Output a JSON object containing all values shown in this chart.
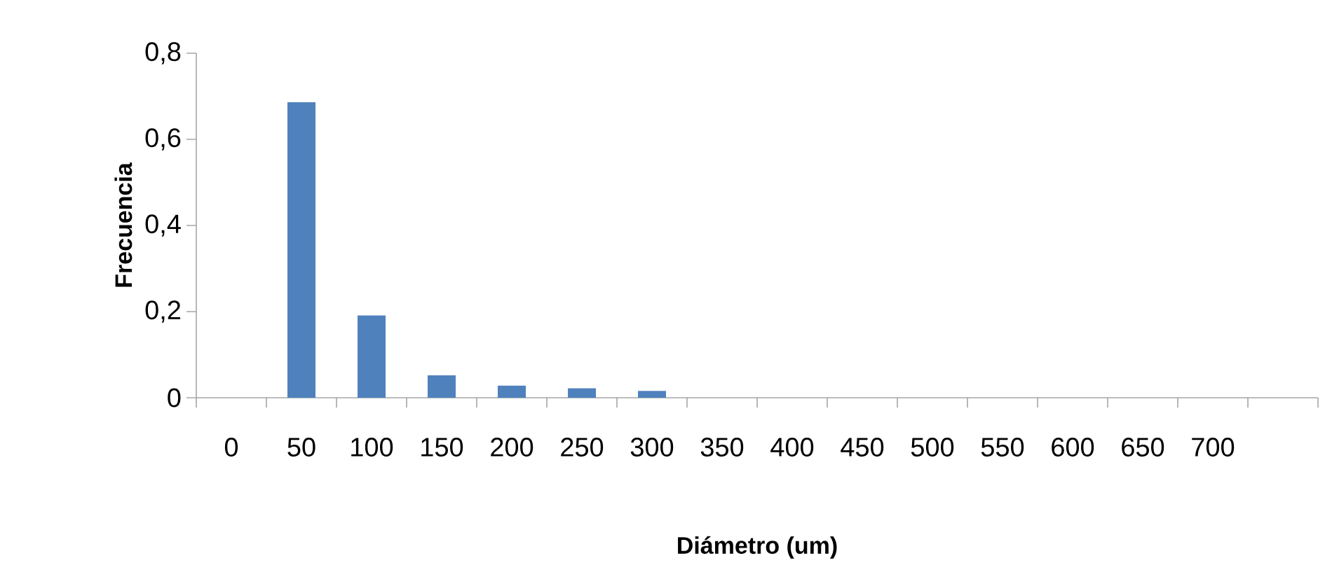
{
  "chart_data": {
    "type": "bar",
    "xlabel": "Diámetro (um)",
    "ylabel": "Frecuencia",
    "categories": [
      "0",
      "50",
      "100",
      "150",
      "200",
      "250",
      "300",
      "350",
      "400",
      "450",
      "500",
      "550",
      "600",
      "650",
      "700",
      null
    ],
    "values": [
      0,
      0.686,
      0.191,
      0.052,
      0.028,
      0.022,
      0.016,
      0,
      0,
      0,
      0,
      0,
      0,
      0,
      0,
      0
    ],
    "color": "#4f81bd",
    "ylim": [
      0,
      0.8
    ],
    "yticks": [
      0,
      {
        "value": 0.2,
        "label": "0,2"
      },
      {
        "value": 0.4,
        "label": "0,4"
      },
      {
        "value": 0.6,
        "label": "0,6"
      },
      {
        "value": 0.8,
        "label": "0,8"
      }
    ],
    "grid": false
  }
}
